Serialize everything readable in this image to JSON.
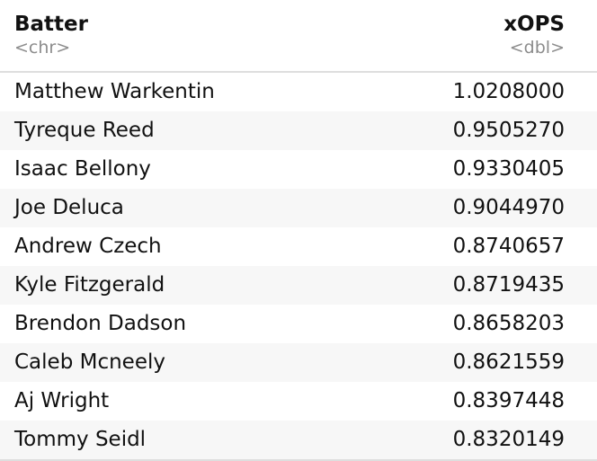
{
  "table": {
    "columns": [
      {
        "name": "Batter",
        "type": "<chr>"
      },
      {
        "name": "xOPS",
        "type": "<dbl>"
      }
    ],
    "rows": [
      {
        "batter": "Matthew Warkentin",
        "xops": "1.0208000"
      },
      {
        "batter": "Tyreque Reed",
        "xops": "0.9505270"
      },
      {
        "batter": "Isaac Bellony",
        "xops": "0.9330405"
      },
      {
        "batter": "Joe Deluca",
        "xops": "0.9044970"
      },
      {
        "batter": "Andrew Czech",
        "xops": "0.8740657"
      },
      {
        "batter": "Kyle Fitzgerald",
        "xops": "0.8719435"
      },
      {
        "batter": "Brendon Dadson",
        "xops": "0.8658203"
      },
      {
        "batter": "Caleb Mcneely",
        "xops": "0.8621559"
      },
      {
        "batter": "Aj Wright",
        "xops": "0.8397448"
      },
      {
        "batter": "Tommy Seidl",
        "xops": "0.8320149"
      }
    ]
  }
}
